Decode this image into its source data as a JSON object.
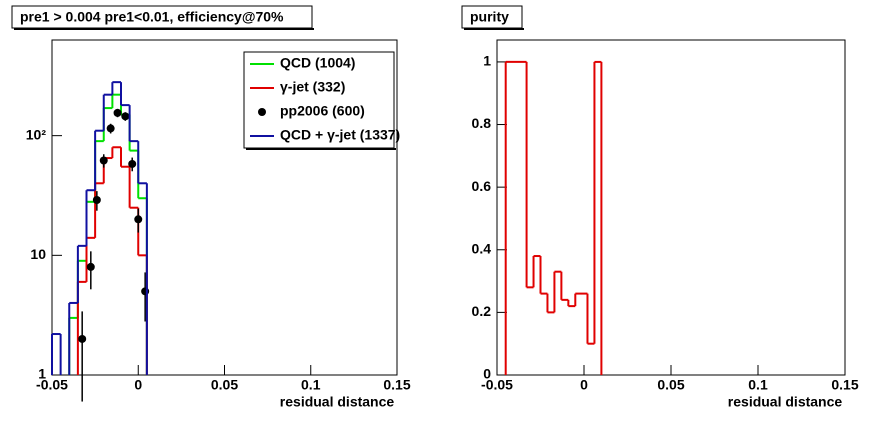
{
  "chart_data": [
    {
      "type": "histogram",
      "title": "pre1 > 0.004  pre1<0.01, efficiency@70%",
      "x_label": "residual distance",
      "log_y": true,
      "legend": "top-right",
      "xlim": [
        -0.05,
        0.15
      ],
      "xticks": [
        -0.05,
        0,
        0.05,
        0.1,
        0.15
      ],
      "ylim": [
        1,
        630
      ],
      "yticks": [
        1,
        10,
        {
          "value": 100,
          "label": "10²"
        }
      ],
      "bins": [
        -0.05,
        -0.045,
        -0.04,
        -0.035,
        -0.03,
        -0.025,
        -0.02,
        -0.015,
        -0.01,
        -0.005,
        0,
        0.005
      ],
      "series": [
        {
          "name": "QCD (1004)",
          "color": "#00e000",
          "values": [
            null,
            null,
            3,
            9,
            28,
            90,
            170,
            220,
            150,
            75,
            30
          ]
        },
        {
          "name": "γ-jet (332)",
          "color": "#e00000",
          "values": [
            null,
            null,
            null,
            6,
            14,
            40,
            65,
            80,
            55,
            25,
            10
          ]
        },
        {
          "name": "pp2006 (600)",
          "color": "#000000",
          "x": [
            -0.0325,
            -0.0275,
            -0.024,
            -0.02,
            -0.016,
            -0.012,
            -0.0075,
            -0.0035,
            0,
            0.004
          ],
          "values": [
            2,
            8,
            29,
            62,
            115,
            155,
            145,
            58,
            20,
            5
          ],
          "errors": [
            1.4,
            2.8,
            5.4,
            7.9,
            10.7,
            12.4,
            12,
            7.6,
            4.5,
            2.2
          ]
        },
        {
          "name": "QCD + γ-jet (1337)",
          "color": "#1010a0",
          "values": [
            2.2,
            null,
            4,
            12,
            35,
            110,
            220,
            280,
            180,
            90,
            40
          ]
        }
      ]
    },
    {
      "type": "histogram",
      "title": "purity",
      "x_label": "residual distance",
      "xlim": [
        -0.05,
        0.15
      ],
      "xticks": [
        -0.05,
        0,
        0.05,
        0.1,
        0.15
      ],
      "ylim": [
        0,
        1.07
      ],
      "yticks": [
        0,
        0.2,
        0.4,
        0.6,
        0.8,
        1
      ],
      "bins": [
        -0.045,
        -0.033,
        -0.029,
        -0.025,
        -0.021,
        -0.017,
        -0.013,
        -0.009,
        -0.005,
        0.002,
        0.006,
        0.01
      ],
      "series": [
        {
          "color": "#e00000",
          "values": [
            1,
            0.28,
            0.38,
            0.26,
            0.2,
            0.33,
            0.24,
            0.22,
            0.26,
            0.1,
            1
          ]
        }
      ]
    }
  ]
}
